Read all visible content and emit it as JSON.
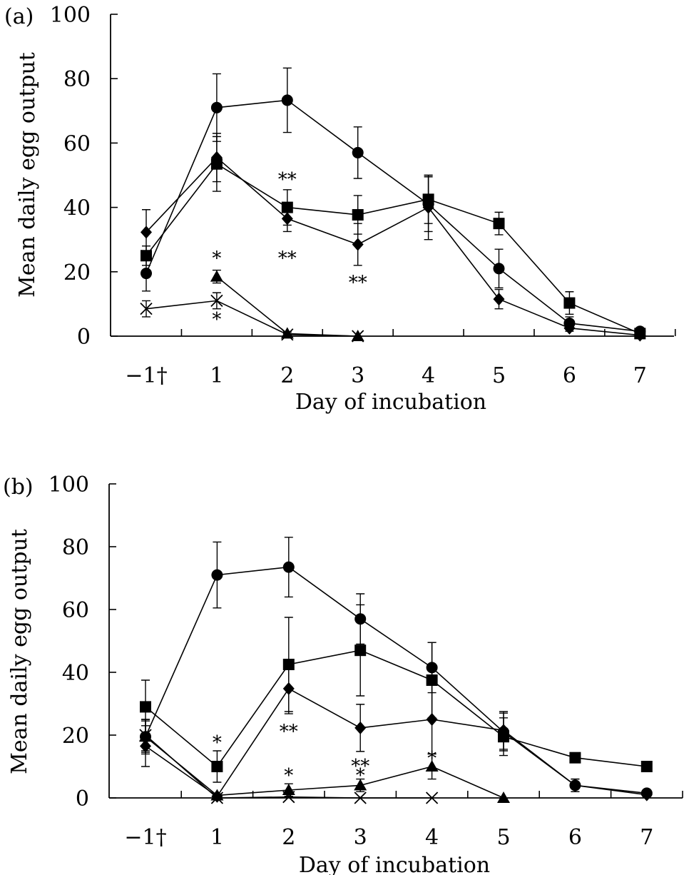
{
  "chart_data": [
    {
      "type": "line",
      "panel_label": "(a)",
      "xlabel": "Day of incubation",
      "ylabel": "Mean daily egg output",
      "categories": [
        "−1†",
        "1",
        "2",
        "3",
        "4",
        "5",
        "6",
        "7"
      ],
      "ylim": [
        0,
        100
      ],
      "yticks": [
        0,
        20,
        40,
        60,
        80,
        100
      ],
      "grid": false,
      "series": [
        {
          "marker": "circle",
          "values": [
            19.5,
            71,
            73.3,
            57,
            41,
            21,
            4,
            1.5
          ],
          "errors": [
            5.5,
            10.5,
            10,
            8,
            8.5,
            6,
            2,
            0.8
          ]
        },
        {
          "marker": "square",
          "values": [
            25,
            53.5,
            40,
            37.7,
            42.5,
            35,
            10.3,
            0.8
          ],
          "errors": [
            3,
            8.5,
            5.5,
            6,
            7.5,
            3.5,
            3.5,
            0.5
          ]
        },
        {
          "marker": "diamond",
          "values": [
            32.3,
            55.5,
            36.5,
            28.5,
            40,
            11.5,
            2.5,
            0.3
          ],
          "errors": [
            7,
            7.5,
            4,
            6.5,
            10,
            3,
            1,
            0.2
          ]
        },
        {
          "marker": "triangle",
          "values": [
            null,
            18.5,
            0.8,
            0,
            null,
            null,
            null,
            null
          ],
          "errors": [
            null,
            2,
            0.5,
            0,
            null,
            null,
            null,
            null
          ]
        },
        {
          "marker": "cross",
          "values": [
            8.5,
            11,
            0.5,
            0,
            null,
            null,
            null,
            null
          ],
          "errors": [
            2.5,
            2.5,
            0.3,
            0,
            null,
            null,
            null,
            null
          ]
        }
      ],
      "annotations": [
        {
          "text": "*",
          "x": "1",
          "y": 24.5
        },
        {
          "text": "*",
          "x": "1",
          "y": 5.5
        },
        {
          "text": "**",
          "x": "2",
          "y": 49
        },
        {
          "text": "**",
          "x": "2",
          "y": 24.5
        },
        {
          "text": "**",
          "x": "3",
          "y": 17
        }
      ]
    },
    {
      "type": "line",
      "panel_label": "(b)",
      "xlabel": "Day of incubation",
      "ylabel": "Mean daily egg output",
      "categories": [
        "−1†",
        "1",
        "2",
        "3",
        "4",
        "5",
        "6",
        "7"
      ],
      "ylim": [
        0,
        100
      ],
      "yticks": [
        0,
        20,
        40,
        60,
        80,
        100
      ],
      "grid": false,
      "series": [
        {
          "marker": "circle",
          "values": [
            19.5,
            71,
            73.5,
            57,
            41.5,
            21,
            4,
            1.5
          ],
          "errors": [
            5.5,
            10.5,
            9.5,
            8,
            8,
            6,
            2,
            0.8
          ]
        },
        {
          "marker": "square",
          "values": [
            29,
            10,
            42.5,
            47,
            37.5,
            19.5,
            12.8,
            10
          ],
          "errors": [
            8.5,
            5,
            15,
            14.5,
            12,
            6,
            1.5,
            0.5
          ]
        },
        {
          "marker": "diamond",
          "values": [
            16.5,
            0.5,
            34.8,
            22.3,
            25,
            21.5,
            4,
            1
          ],
          "errors": [
            6.5,
            0.5,
            8,
            7.5,
            11,
            6,
            2,
            0.5
          ]
        },
        {
          "marker": "triangle",
          "values": [
            19.5,
            0.8,
            2.5,
            4,
            10,
            0,
            null,
            null
          ],
          "errors": [
            5,
            0.5,
            2,
            2,
            4,
            0,
            null,
            null
          ]
        },
        {
          "marker": "cross",
          "values": [
            20,
            0,
            0.3,
            0,
            0,
            null,
            null,
            null
          ],
          "errors": [
            5,
            0,
            0.2,
            0,
            0,
            null,
            null,
            null
          ]
        }
      ],
      "annotations": [
        {
          "text": "*",
          "x": "1",
          "y": 18
        },
        {
          "text": "**",
          "x": "2",
          "y": 21.5
        },
        {
          "text": "*",
          "x": "2",
          "y": 7.5
        },
        {
          "text": "**",
          "x": "3",
          "y": 10.5
        },
        {
          "text": "*",
          "x": "3",
          "y": 7.5
        },
        {
          "text": "*",
          "x": "4",
          "y": 13
        }
      ]
    }
  ]
}
